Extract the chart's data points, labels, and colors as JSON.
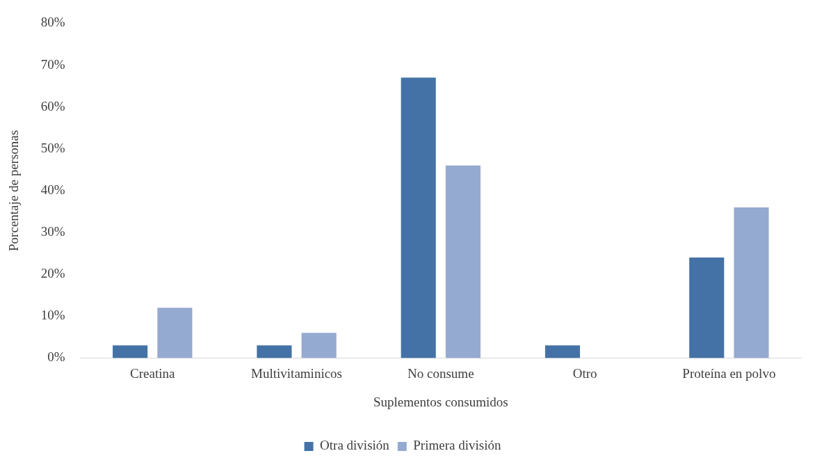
{
  "chart_data": {
    "type": "bar",
    "xlabel": "Suplementos consumidos",
    "ylabel": "Porcentaje de personas",
    "categories": [
      "Creatina",
      "Multivitaminicos",
      "No consume",
      "Otro",
      "Proteína en polvo"
    ],
    "series": [
      {
        "name": "Otra división",
        "color": "#4472a6",
        "values": [
          3,
          3,
          67,
          3,
          24
        ]
      },
      {
        "name": "Primera división",
        "color": "#95aad1",
        "values": [
          12,
          6,
          46,
          0,
          36
        ]
      }
    ],
    "ylim": [
      0,
      80
    ],
    "yticks": [
      {
        "value": 0,
        "label": "0%"
      },
      {
        "value": 10,
        "label": "10%"
      },
      {
        "value": 20,
        "label": "20%"
      },
      {
        "value": 30,
        "label": "30%"
      },
      {
        "value": 40,
        "label": "40%"
      },
      {
        "value": 50,
        "label": "50%"
      },
      {
        "value": 60,
        "label": "60%"
      },
      {
        "value": 70,
        "label": "70%"
      },
      {
        "value": 80,
        "label": "80%"
      }
    ],
    "grid": false,
    "legend": "bottom"
  }
}
